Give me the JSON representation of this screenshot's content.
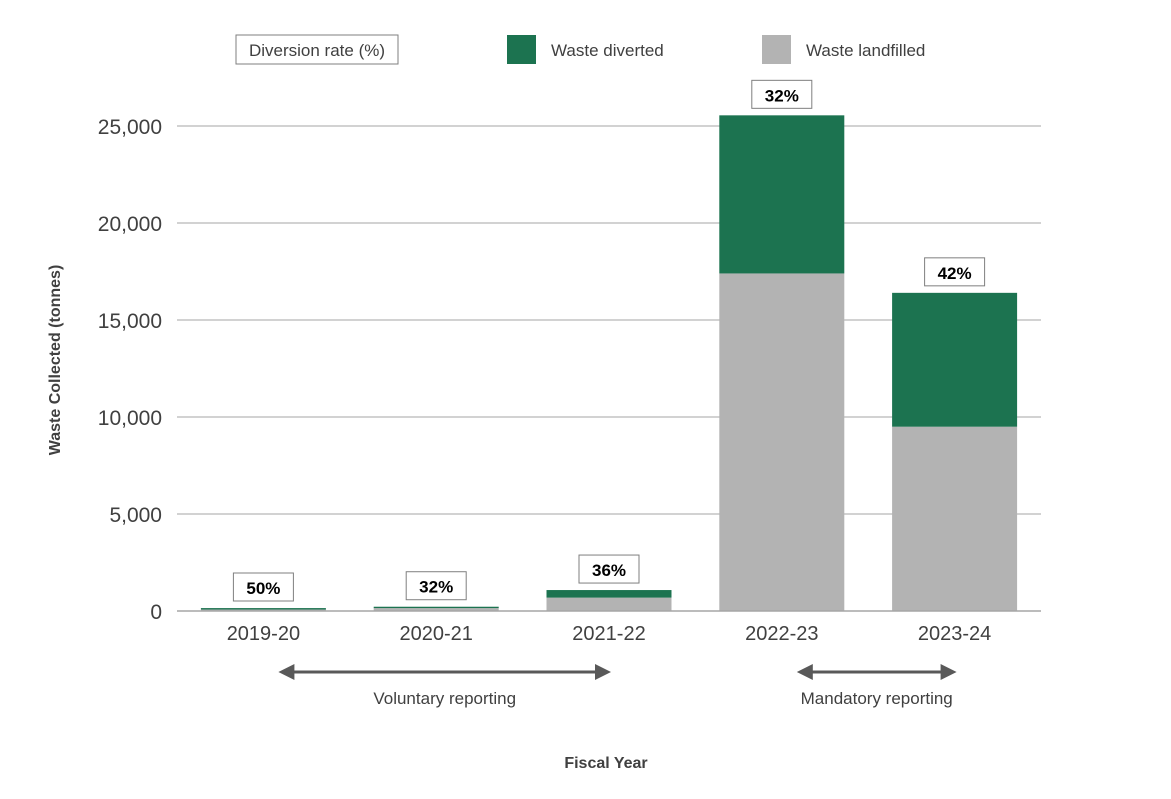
{
  "chart_data": {
    "type": "bar",
    "stacked": true,
    "categories": [
      "2019-20",
      "2020-21",
      "2021-22",
      "2022-23",
      "2023-24"
    ],
    "series": [
      {
        "name": "Waste landfilled",
        "color": "#b3b3b3",
        "values": [
          75,
          150,
          690,
          17400,
          9500
        ]
      },
      {
        "name": "Waste diverted",
        "color": "#1c7350",
        "values": [
          75,
          70,
          390,
          8150,
          6900
        ]
      }
    ],
    "data_labels": [
      "50%",
      "32%",
      "36%",
      "32%",
      "42%"
    ],
    "data_label_legend": "Diversion rate (%)",
    "xlabel": "Fiscal Year",
    "ylabel": "Waste Collected (tonnes)",
    "ylim": [
      0,
      25000
    ],
    "yticks": [
      0,
      5000,
      10000,
      15000,
      20000,
      25000
    ],
    "ytick_labels": [
      "0",
      "5,000",
      "10,000",
      "15,000",
      "20,000",
      "25,000"
    ],
    "grid": true,
    "legend_position": "top",
    "annotations": [
      {
        "text": "Voluntary reporting",
        "from": "2019-20",
        "to": "2021-22"
      },
      {
        "text": "Mandatory reporting",
        "from": "2022-23",
        "to": "2023-24"
      }
    ]
  }
}
